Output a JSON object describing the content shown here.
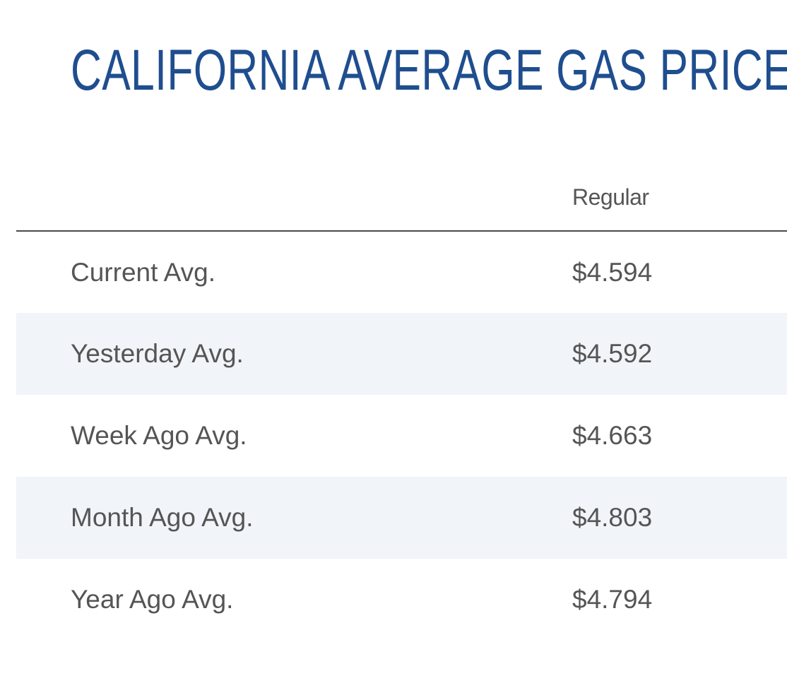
{
  "title": "CALIFORNIA AVERAGE GAS PRICES",
  "table": {
    "columns": [
      "",
      "Regular"
    ],
    "rows": [
      {
        "label": "Current Avg.",
        "regular": "$4.594"
      },
      {
        "label": "Yesterday Avg.",
        "regular": "$4.592"
      },
      {
        "label": "Week Ago Avg.",
        "regular": "$4.663"
      },
      {
        "label": "Month Ago Avg.",
        "regular": "$4.803"
      },
      {
        "label": "Year Ago Avg.",
        "regular": "$4.794"
      }
    ]
  },
  "colors": {
    "title": "#1f4e8f",
    "text": "#555555",
    "alt_row": "#f1f4f9",
    "divider": "#4a4a4a"
  }
}
